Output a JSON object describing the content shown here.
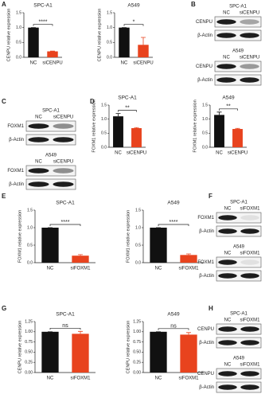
{
  "panels": [
    "A",
    "B",
    "C",
    "D",
    "E",
    "F",
    "G",
    "H"
  ],
  "chart_data": [
    {
      "type": "bar",
      "title": "SPC-A1",
      "ylabel": "CENPU relative expression",
      "categories": [
        "NC",
        "siCENPU"
      ],
      "values": [
        1,
        0.2
      ],
      "errors": [
        0,
        0.01
      ],
      "colors": [
        "#111111",
        "#e8431e"
      ],
      "ylim": [
        0,
        1.5
      ],
      "yticks": [
        {
          "value": 0,
          "label": "0.0"
        },
        {
          "value": 0.5,
          "label": "0.5"
        },
        {
          "value": 1,
          "label": "1.0"
        },
        {
          "value": 1.5,
          "label": "1.5"
        }
      ],
      "significance": "****"
    },
    {
      "type": "bar",
      "title": "A549",
      "ylabel": "CENPU relative expression",
      "categories": [
        "NC",
        "siCENPU"
      ],
      "values": [
        1,
        0.42
      ],
      "errors": [
        0,
        0.25
      ],
      "colors": [
        "#111111",
        "#e8431e"
      ],
      "ylim": [
        0,
        1.5
      ],
      "yticks": [
        {
          "value": 0,
          "label": "0.0"
        },
        {
          "value": 0.5,
          "label": "0.5"
        },
        {
          "value": 1,
          "label": "1.0"
        },
        {
          "value": 1.5,
          "label": "1.5"
        }
      ],
      "significance": "*"
    },
    {
      "type": "bar",
      "title": "SPC-A1",
      "ylabel": "FOXM1 relative expression",
      "categories": [
        "NC",
        "siCENPU"
      ],
      "values": [
        1.1,
        0.68
      ],
      "errors": [
        0.1,
        0.02
      ],
      "colors": [
        "#111111",
        "#e8431e"
      ],
      "ylim": [
        0,
        1.5
      ],
      "yticks": [
        {
          "value": 0,
          "label": "0.0"
        },
        {
          "value": 0.5,
          "label": "0.5"
        },
        {
          "value": 1,
          "label": "1.0"
        },
        {
          "value": 1.5,
          "label": "1.5"
        }
      ],
      "significance": "**"
    },
    {
      "type": "bar",
      "title": "A549",
      "ylabel": "FOXM1 relative expression",
      "categories": [
        "NC",
        "siCENPU"
      ],
      "values": [
        1.15,
        0.65
      ],
      "errors": [
        0.1,
        0.02
      ],
      "colors": [
        "#111111",
        "#e8431e"
      ],
      "ylim": [
        0,
        1.5
      ],
      "yticks": [
        {
          "value": 0,
          "label": "0.0"
        },
        {
          "value": 0.5,
          "label": "0.5"
        },
        {
          "value": 1,
          "label": "1.0"
        },
        {
          "value": 1.5,
          "label": "1.5"
        }
      ],
      "significance": "**"
    },
    {
      "type": "bar",
      "title": "SPC-A1",
      "ylabel": "FOXM1 relative expression",
      "categories": [
        "NC",
        "siFOXM1"
      ],
      "values": [
        1,
        0.2
      ],
      "errors": [
        0,
        0.03
      ],
      "colors": [
        "#111111",
        "#e8431e"
      ],
      "ylim": [
        0,
        1.5
      ],
      "yticks": [
        {
          "value": 0,
          "label": "0.0"
        },
        {
          "value": 0.5,
          "label": "0.5"
        },
        {
          "value": 1,
          "label": "1.0"
        },
        {
          "value": 1.5,
          "label": "1.5"
        }
      ],
      "significance": "****"
    },
    {
      "type": "bar",
      "title": "A549",
      "ylabel": "FOXM1 relative expression",
      "categories": [
        "NC",
        "siFOXM1"
      ],
      "values": [
        1,
        0.22
      ],
      "errors": [
        0,
        0.03
      ],
      "colors": [
        "#111111",
        "#e8431e"
      ],
      "ylim": [
        0,
        1.5
      ],
      "yticks": [
        {
          "value": 0,
          "label": "0.0"
        },
        {
          "value": 0.5,
          "label": "0.5"
        },
        {
          "value": 1,
          "label": "1.0"
        },
        {
          "value": 1.5,
          "label": "1.5"
        }
      ],
      "significance": "****"
    },
    {
      "type": "bar",
      "title": "SPC-A1",
      "ylabel": "CENPU relative expression",
      "categories": [
        "NC",
        "siFOXM1"
      ],
      "values": [
        1,
        0.95
      ],
      "errors": [
        0,
        0.06
      ],
      "colors": [
        "#111111",
        "#e8431e"
      ],
      "ylim": [
        0,
        1.25
      ],
      "yticks": [
        {
          "value": 0,
          "label": "0.00"
        },
        {
          "value": 0.25,
          "label": "0.25"
        },
        {
          "value": 0.5,
          "label": "0.50"
        },
        {
          "value": 0.75,
          "label": "0.75"
        },
        {
          "value": 1,
          "label": "1.00"
        },
        {
          "value": 1.25,
          "label": "1.25"
        }
      ],
      "significance": "ns"
    },
    {
      "type": "bar",
      "title": "A549",
      "ylabel": "CENPU relative expression",
      "categories": [
        "NC",
        "siFOXM1"
      ],
      "values": [
        1,
        0.93
      ],
      "errors": [
        0,
        0.05
      ],
      "colors": [
        "#111111",
        "#e8431e"
      ],
      "ylim": [
        0,
        1.25
      ],
      "yticks": [
        {
          "value": 0,
          "label": "0.00"
        },
        {
          "value": 0.25,
          "label": "0.25"
        },
        {
          "value": 0.5,
          "label": "0.50"
        },
        {
          "value": 0.75,
          "label": "0.75"
        },
        {
          "value": 1,
          "label": "1.00"
        },
        {
          "value": 1.25,
          "label": "1.25"
        }
      ],
      "significance": "ns"
    }
  ],
  "blots": [
    {
      "groups": [
        {
          "title": "SPC-A1",
          "lanes": [
            "NC",
            "siCENPU"
          ],
          "rows": [
            "CENPU",
            "β-Actin"
          ]
        },
        {
          "title": "A549",
          "lanes": [
            "NC",
            "siCENPU"
          ],
          "rows": [
            "CENPU",
            "β-Actin"
          ]
        }
      ]
    },
    {
      "groups": [
        {
          "title": "SPC-A1",
          "lanes": [
            "NC",
            "siCENPU"
          ],
          "rows": [
            "FOXM1",
            "β-Actin"
          ]
        },
        {
          "title": "A549",
          "lanes": [
            "NC",
            "siCENPU"
          ],
          "rows": [
            "FOXM1",
            "β-Actin"
          ]
        }
      ]
    },
    {
      "groups": [
        {
          "title": "SPC-A1",
          "lanes": [
            "NC",
            "siFOXM1"
          ],
          "rows": [
            "FOXM1",
            "β-Actin"
          ]
        },
        {
          "title": "A549",
          "lanes": [
            "NC",
            "siFOXM1"
          ],
          "rows": [
            "FOXM1",
            "β-Actin"
          ]
        }
      ]
    },
    {
      "groups": [
        {
          "title": "SPC-A1",
          "lanes": [
            "NC",
            "siFOXM1"
          ],
          "rows": [
            "CENPU",
            "β-Actin"
          ]
        },
        {
          "title": "A549",
          "lanes": [
            "NC",
            "siFOXM1"
          ],
          "rows": [
            "CENPU",
            "β-Actin"
          ]
        }
      ]
    }
  ]
}
